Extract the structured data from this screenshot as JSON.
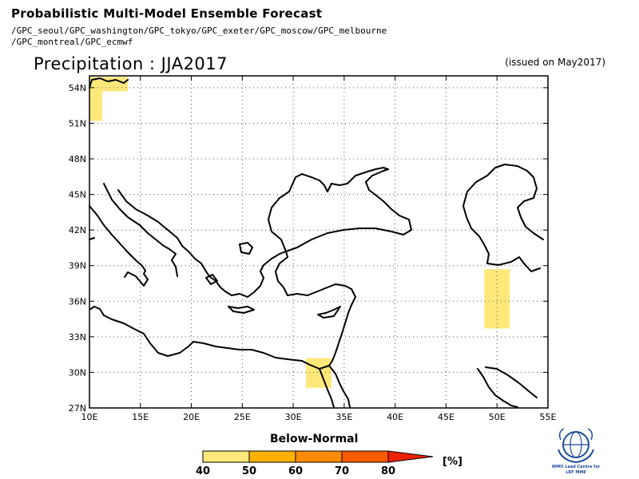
{
  "header": {
    "title": "Probabilistic Multi-Model Ensemble Forecast",
    "sources_line1": "/GPC_seoul/GPC_washington/GPC_tokyo/GPC_exeter/GPC_moscow/GPC_melbourne",
    "sources_line2": "/GPC_montreal/GPC_ecmwf"
  },
  "map": {
    "title": "Precipitation : JJA2017",
    "issued": "(issued on May2017)",
    "lon_range": [
      10,
      55
    ],
    "lat_range": [
      27,
      55
    ],
    "lon_ticks": [
      "10E",
      "15E",
      "20E",
      "25E",
      "30E",
      "35E",
      "40E",
      "45E",
      "50E",
      "55E"
    ],
    "lat_ticks": [
      "27N",
      "30N",
      "33N",
      "36N",
      "39N",
      "42N",
      "45N",
      "48N",
      "51N",
      "54N"
    ],
    "grid": "dotted",
    "regions": [
      {
        "category": "Below-Normal",
        "probability_bin": "40-50",
        "lon": [
          10,
          11.25
        ],
        "lat": [
          51.2,
          54.9
        ]
      },
      {
        "category": "Below-Normal",
        "probability_bin": "40-50",
        "lon": [
          11.25,
          13.75
        ],
        "lat": [
          53.7,
          54.9
        ]
      },
      {
        "category": "Below-Normal",
        "probability_bin": "40-50",
        "lon": [
          48.75,
          51.25
        ],
        "lat": [
          33.7,
          38.7
        ]
      },
      {
        "category": "Below-Normal",
        "probability_bin": "40-50",
        "lon": [
          31.25,
          33.75
        ],
        "lat": [
          28.7,
          31.2
        ]
      }
    ]
  },
  "legend": {
    "title": "Below-Normal",
    "labels": [
      "40",
      "50",
      "60",
      "70",
      "80"
    ],
    "unit": "[%]",
    "colors": [
      "#ffe87a",
      "#ffb300",
      "#ff8c00",
      "#ff5a00",
      "#ee2200",
      "#d11e1e"
    ]
  },
  "logo": {
    "line1": "WMO Lead Centre for",
    "line2": "LRF MME"
  }
}
